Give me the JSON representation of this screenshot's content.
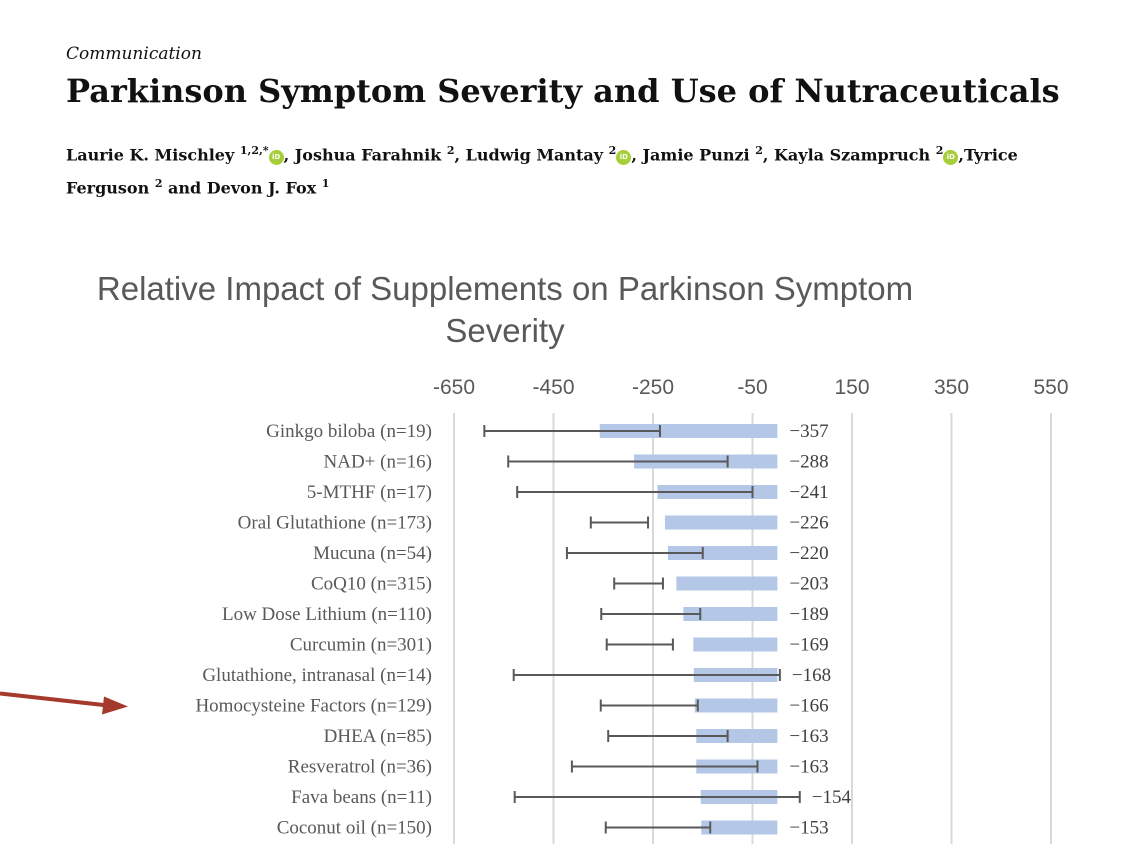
{
  "paper": {
    "type": "Communication",
    "title": "Parkinson Symptom Severity and Use of Nutraceuticals",
    "authors": [
      {
        "name": "Laurie K. Mischley",
        "sup": "1,2,*",
        "orcid": true,
        "sep": ", "
      },
      {
        "name": "Joshua Farahnik",
        "sup": "2",
        "orcid": false,
        "sep": ", "
      },
      {
        "name": "Ludwig Mantay",
        "sup": "2",
        "orcid": true,
        "sep": ", "
      },
      {
        "name": "Jamie Punzi",
        "sup": "2",
        "orcid": false,
        "sep": ", "
      },
      {
        "name": "Kayla Szampruch",
        "sup": "2",
        "orcid": true,
        "sep": ","
      },
      {
        "name": "Tyrice Ferguson",
        "sup": "2",
        "orcid": false,
        "sep": " and "
      },
      {
        "name": "Devon J. Fox",
        "sup": "1",
        "orcid": false,
        "sep": ""
      }
    ],
    "orcid_label": "iD"
  },
  "chart_data": {
    "type": "bar",
    "orientation": "horizontal",
    "title": "Relative Impact of Supplements on Parkinson Symptom Severity",
    "title_lines": [
      "Relative Impact of Supplements on Parkinson Symptom",
      "Severity"
    ],
    "x_ticks": [
      -650,
      -450,
      -250,
      -50,
      150,
      350,
      550
    ],
    "x_tick_labels": [
      "-650",
      "-450",
      "-250",
      "-50",
      "150",
      "350",
      "550"
    ],
    "xlim": [
      -650,
      550
    ],
    "grid": true,
    "categories": [
      "Ginkgo biloba (n=19)",
      "NAD+ (n=16)",
      "5-MTHF (n=17)",
      "Oral Glutathione (n=173)",
      "Mucuna (n=54)",
      "CoQ10 (n=315)",
      "Low Dose Lithium (n=110)",
      "Curcumin (n=301)",
      "Glutathione, intranasal (n=14)",
      "Homocysteine Factors (n=129)",
      "DHEA (n=85)",
      "Resveratrol (n=36)",
      "Fava beans (n=11)",
      "Coconut oil (n=150)"
    ],
    "values": [
      -357,
      -288,
      -241,
      -226,
      -220,
      -203,
      -189,
      -169,
      -168,
      -166,
      -163,
      -163,
      -154,
      -153
    ],
    "value_labels": [
      "−357",
      "−288",
      "−241",
      "−226",
      "−220",
      "−203",
      "−189",
      "−169",
      "−168",
      "−166",
      "−163",
      "−163",
      "−154",
      "−153"
    ],
    "error_low": [
      -589,
      -541,
      -523,
      -375,
      -423,
      -328,
      -354,
      -343,
      -530,
      -355,
      -340,
      -413,
      -528,
      -345
    ],
    "error_high": [
      -236,
      -100,
      -50,
      -260,
      -150,
      -230,
      -155,
      -210,
      5,
      -160,
      -100,
      -40,
      45,
      -135
    ],
    "highlight_category": "Homocysteine Factors (n=129)",
    "colors": {
      "bar": "#b4c7e7",
      "error_bar": "#595959",
      "grid": "#d9d9d9",
      "arrow": "#a5392b"
    }
  }
}
